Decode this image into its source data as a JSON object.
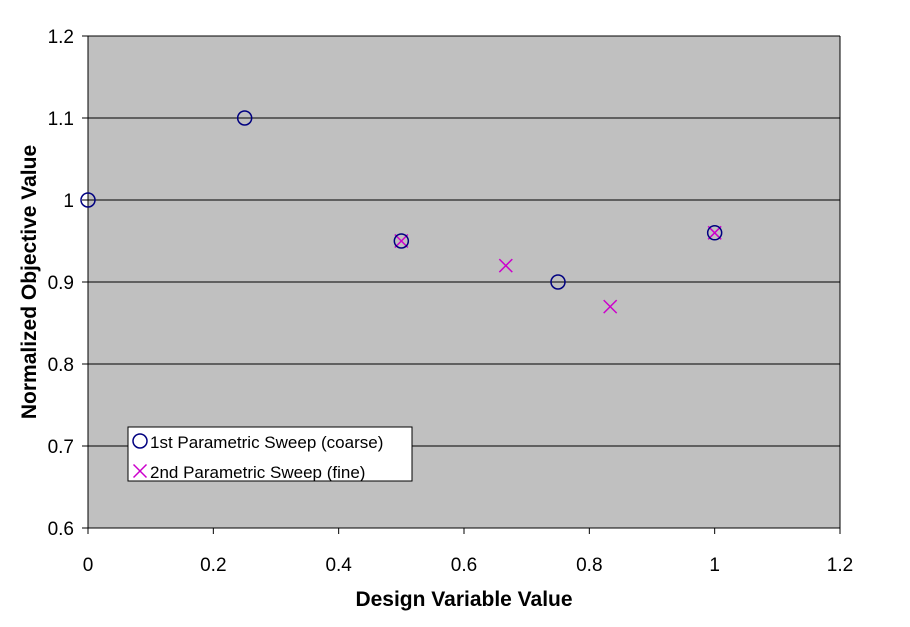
{
  "chart_data": {
    "type": "scatter",
    "title": "",
    "xlabel": "Design Variable Value",
    "ylabel": "Normalized Objective Value",
    "xlim": [
      0,
      1.2
    ],
    "ylim": [
      0.6,
      1.2
    ],
    "xticks": [
      "0",
      "0.2",
      "0.4",
      "0.6",
      "0.8",
      "1",
      "1.2"
    ],
    "yticks": [
      "0.6",
      "0.7",
      "0.8",
      "0.9",
      "1",
      "1.1",
      "1.2"
    ],
    "grid": "horizontal",
    "legend_position": "bottom-left",
    "plot_background": "#C0C0C0",
    "series": [
      {
        "name": "1st Parametric Sweep (coarse)",
        "marker": "circle",
        "color": "#000080",
        "x": [
          0,
          0.25,
          0.5,
          0.75,
          1.0
        ],
        "y": [
          1.0,
          1.1,
          0.95,
          0.9,
          0.96
        ]
      },
      {
        "name": "2nd Parametric Sweep (fine)",
        "marker": "x",
        "color": "#CC00CC",
        "x": [
          0.5,
          0.6667,
          0.8333,
          1.0
        ],
        "y": [
          0.95,
          0.92,
          0.87,
          0.96
        ]
      }
    ]
  }
}
